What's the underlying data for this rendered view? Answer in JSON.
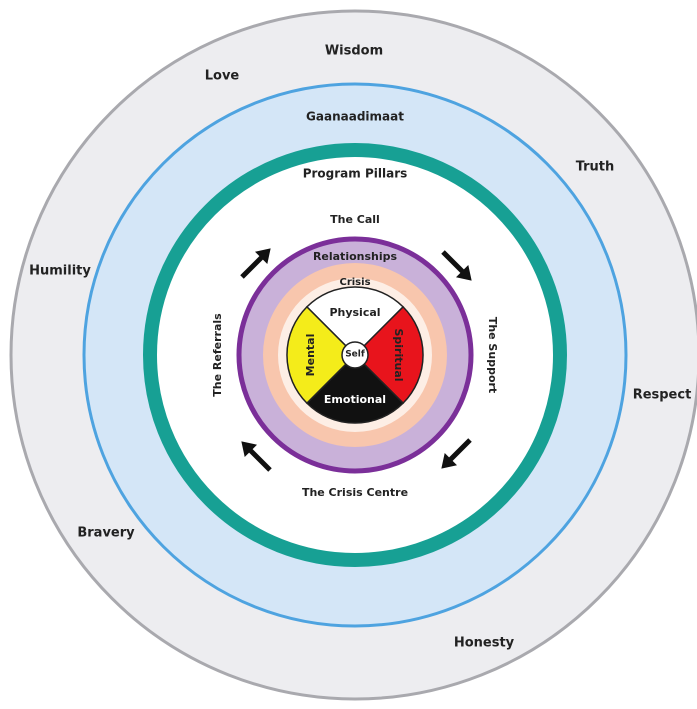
{
  "teachings": [
    "Wisdom",
    "Love",
    "Truth",
    "Humility",
    "Respect",
    "Bravery",
    "Honesty"
  ],
  "rings": {
    "gaanaadimaat": "Gaanaadimaat",
    "pillars": "Program Pillars",
    "relationships": "Relationships",
    "crisis": "Crisis",
    "self": "Self"
  },
  "pillars": {
    "top": "The Call",
    "right": "The Support",
    "bottom": "The Crisis Centre",
    "left": "The Referrals"
  },
  "wheel": {
    "top": "Physical",
    "right": "Spiritual",
    "bottom": "Emotional",
    "left": "Mental"
  }
}
